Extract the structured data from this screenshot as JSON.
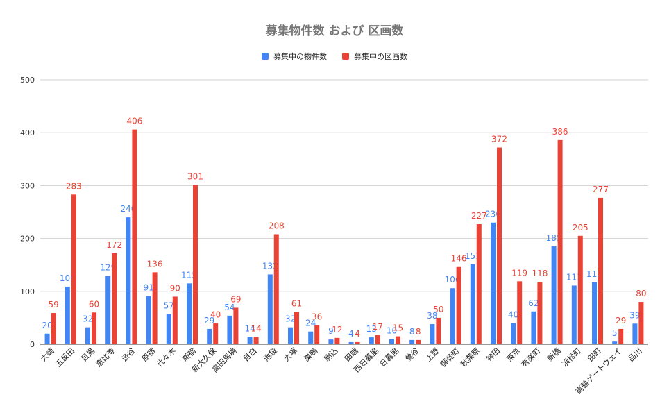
{
  "chart_data": {
    "type": "bar",
    "title": "募集物件数 および 区画数",
    "xlabel": "",
    "ylabel": "",
    "ylim": [
      0,
      500
    ],
    "yticks": [
      0,
      100,
      200,
      300,
      400,
      500
    ],
    "grid": true,
    "legend_position": "top",
    "categories": [
      "大崎",
      "五反田",
      "目黒",
      "恵比寿",
      "渋谷",
      "原宿",
      "代々木",
      "新宿",
      "新大久保",
      "高田馬場",
      "目白",
      "池袋",
      "大塚",
      "巣鴨",
      "駒込",
      "田端",
      "西日暮里",
      "日暮里",
      "鶯谷",
      "上野",
      "御徒町",
      "秋葉原",
      "神田",
      "東京",
      "有楽町",
      "新橋",
      "浜松町",
      "田町",
      "高輪ゲートウェイ",
      "品川"
    ],
    "series": [
      {
        "name": "募集中の物件数",
        "color": "#4285f4",
        "values": [
          20,
          109,
          32,
          129,
          240,
          91,
          57,
          115,
          29,
          54,
          14,
          132,
          32,
          24,
          9,
          4,
          13,
          10,
          8,
          38,
          106,
          151,
          230,
          40,
          62,
          185,
          111,
          117,
          5,
          39
        ]
      },
      {
        "name": "募集中の区画数",
        "color": "#ea4335",
        "values": [
          59,
          283,
          60,
          172,
          406,
          136,
          90,
          301,
          40,
          69,
          14,
          208,
          61,
          36,
          12,
          4,
          17,
          15,
          8,
          50,
          146,
          227,
          372,
          119,
          118,
          386,
          205,
          277,
          29,
          80
        ]
      }
    ]
  }
}
